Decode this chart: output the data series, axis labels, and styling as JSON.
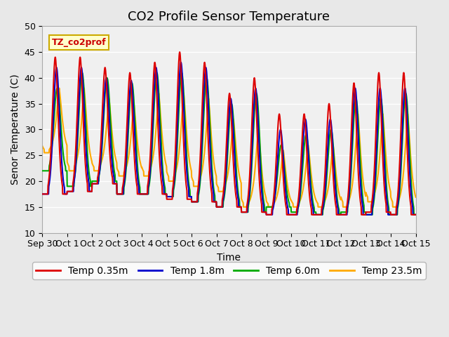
{
  "title": "CO2 Profile Sensor Temperature",
  "ylabel": "Senor Temperature (C)",
  "xlabel": "Time",
  "annotation_text": "TZ_co2prof",
  "annotation_color": "#cc0000",
  "annotation_bg": "#ffffcc",
  "annotation_border": "#ccaa00",
  "ylim": [
    10,
    50
  ],
  "yticks": [
    10,
    15,
    20,
    25,
    30,
    35,
    40,
    45,
    50
  ],
  "x_labels": [
    "Sep 30",
    "Oct 1",
    "Oct 2",
    "Oct 3",
    "Oct 4",
    "Oct 5",
    "Oct 6",
    "Oct 7",
    "Oct 8",
    "Oct 9",
    "Oct 10",
    "Oct 11",
    "Oct 12",
    "Oct 13",
    "Oct 14",
    "Oct 15"
  ],
  "colors": {
    "red": "#dd0000",
    "blue": "#0000cc",
    "green": "#00aa00",
    "orange": "#ffaa00"
  },
  "legend_labels": [
    "Temp 0.35m",
    "Temp 1.8m",
    "Temp 6.0m",
    "Temp 23.5m"
  ],
  "bg_color": "#e8e8e8",
  "plot_bg": "#f0f0f0",
  "grid_color": "#ffffff",
  "title_fontsize": 13,
  "label_fontsize": 10,
  "tick_fontsize": 9
}
